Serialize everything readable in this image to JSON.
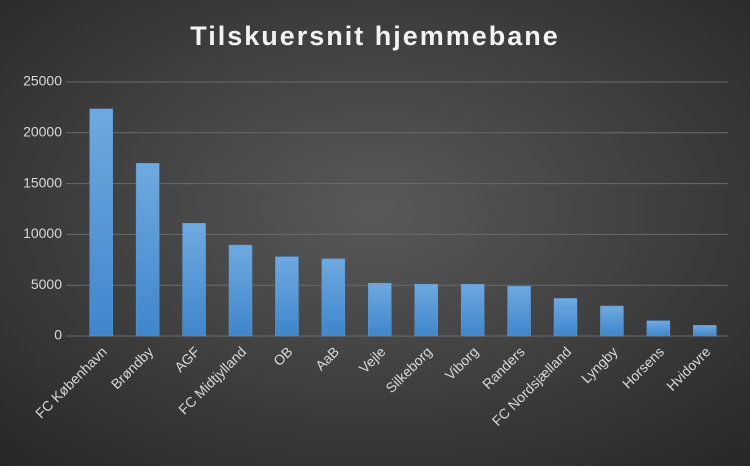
{
  "chart_data": {
    "type": "bar",
    "title": "Tilskuersnit hjemmebane",
    "categories": [
      "FC København",
      "Brøndby",
      "AGF",
      "FC Midtjylland",
      "OB",
      "AaB",
      "Vejle",
      "Silkeborg",
      "Viborg",
      "Randers",
      "FC Nordsjælland",
      "Lyngby",
      "Horsens",
      "Hvidovre"
    ],
    "values": [
      22350,
      17000,
      11100,
      8950,
      7800,
      7600,
      5200,
      5100,
      5100,
      4900,
      3700,
      2950,
      1500,
      1050
    ],
    "color": "#5b9bd5",
    "ylim": [
      0,
      25000
    ],
    "yticks": [
      0,
      5000,
      10000,
      15000,
      20000,
      25000
    ],
    "grid": true
  }
}
